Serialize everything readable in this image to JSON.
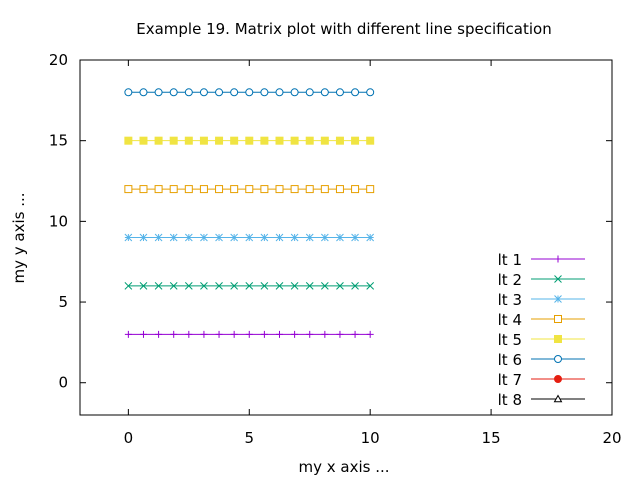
{
  "chart_data": {
    "type": "line",
    "title": "Example 19. Matrix plot with different line specification",
    "xlabel": "my x axis ...",
    "ylabel": "my y axis ...",
    "xlim": [
      -2,
      20
    ],
    "ylim": [
      -2,
      20
    ],
    "xticks": [
      0,
      5,
      10,
      15,
      20
    ],
    "yticks": [
      0,
      5,
      10,
      15,
      20
    ],
    "grid": false,
    "legend_position": "bottom-right",
    "x": [
      0,
      0.625,
      1.25,
      1.875,
      2.5,
      3.125,
      3.75,
      4.375,
      5,
      5.625,
      6.25,
      6.875,
      7.5,
      8.125,
      8.75,
      9.375,
      10
    ],
    "series": [
      {
        "name": "lt 1",
        "value": 3,
        "color": "#9400d3",
        "marker": "plus"
      },
      {
        "name": "lt 2",
        "value": 6,
        "color": "#009e73",
        "marker": "cross"
      },
      {
        "name": "lt 3",
        "value": 9,
        "color": "#56b4e9",
        "marker": "star"
      },
      {
        "name": "lt 4",
        "value": 12,
        "color": "#e69f00",
        "marker": "square-open"
      },
      {
        "name": "lt 5",
        "value": 15,
        "color": "#f0e442",
        "marker": "square-filled"
      },
      {
        "name": "lt 6",
        "value": 18,
        "color": "#0072b2",
        "marker": "circle-open"
      },
      {
        "name": "lt 7",
        "value": null,
        "color": "#e51e10",
        "marker": "circle-filled"
      },
      {
        "name": "lt 8",
        "value": null,
        "color": "#000000",
        "marker": "triangle-open"
      }
    ]
  }
}
